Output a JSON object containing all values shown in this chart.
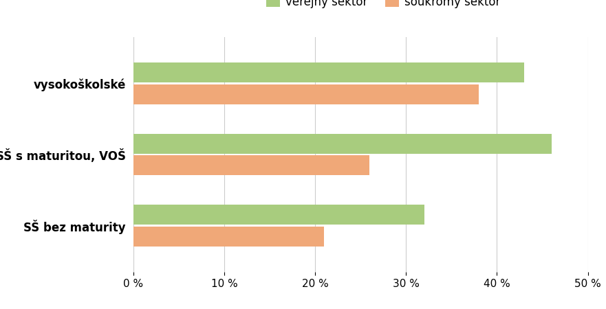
{
  "categories": [
    "SŠ bez maturity",
    "SŠ s maturitou, VOŠ",
    "vysokoškolské"
  ],
  "verejny": [
    32,
    46,
    43
  ],
  "soukromy": [
    21,
    26,
    38
  ],
  "verejny_color": "#A8CC7E",
  "soukromy_color": "#F0A878",
  "legend_labels": [
    "veřejný sektor",
    "soukromý sektor"
  ],
  "xlim": [
    0,
    50
  ],
  "xticks": [
    0,
    10,
    20,
    30,
    40,
    50
  ],
  "background_color": "#ffffff",
  "bar_height": 0.28,
  "label_fontsize": 12,
  "tick_fontsize": 11,
  "legend_fontsize": 12
}
